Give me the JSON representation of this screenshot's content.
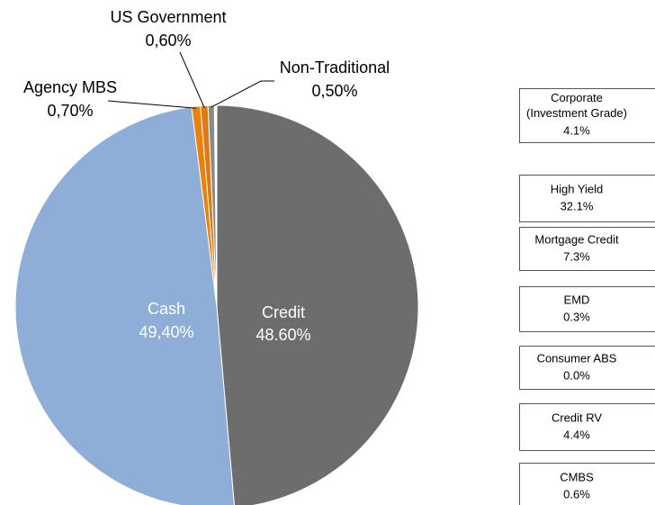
{
  "chart_data": {
    "type": "pie",
    "categories": [
      "Credit",
      "Cash",
      "Agency MBS",
      "US Government",
      "Non-Traditional"
    ],
    "values": [
      48.6,
      49.4,
      0.7,
      0.6,
      0.5
    ],
    "value_labels": [
      "48.60%",
      "49,40%",
      "0,70%",
      "0,60%",
      "0,50%"
    ],
    "colors": [
      "#6d6d6d",
      "#8eaed8",
      "#e8820c",
      "#e07a10",
      "#8a8a8a"
    ]
  },
  "credit_breakdown": [
    {
      "name": "Corporate (Investment Grade)",
      "value_label": "4.1%"
    },
    {
      "name": "High Yield",
      "value_label": "32.1%"
    },
    {
      "name": "Mortgage Credit",
      "value_label": "7.3%"
    },
    {
      "name": "EMD",
      "value_label": "0.3%"
    },
    {
      "name": "Consumer ABS",
      "value_label": "0.0%"
    },
    {
      "name": "Credit RV",
      "value_label": "4.4%"
    },
    {
      "name": "CMBS",
      "value_label": "0.6%"
    }
  ]
}
